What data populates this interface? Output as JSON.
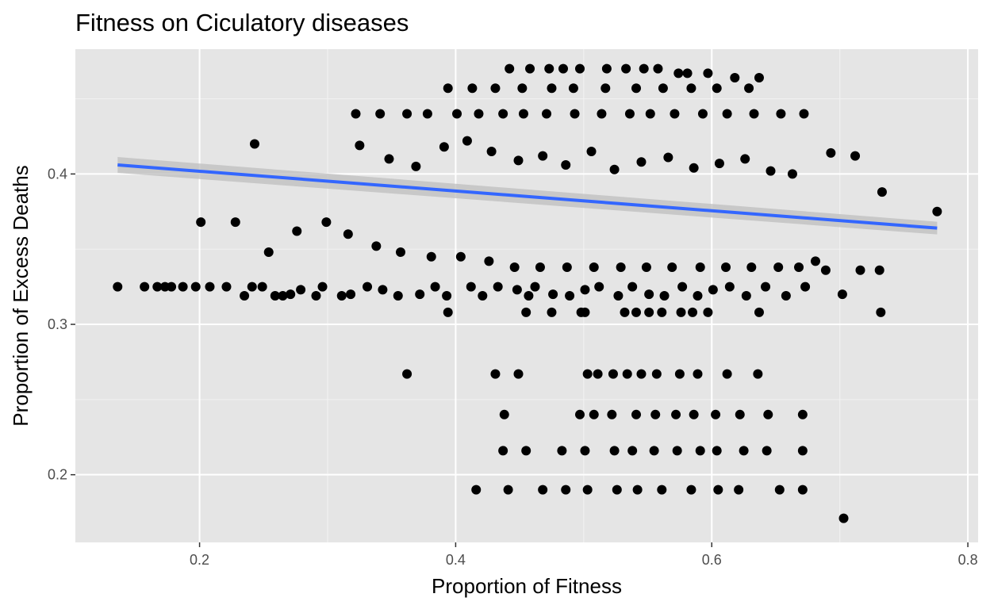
{
  "chart_data": {
    "type": "scatter",
    "title": "Fitness on Ciculatory diseases",
    "xlabel": "Proportion of Fitness",
    "ylabel": "Proportion of Excess Deaths",
    "xlim": [
      0.103,
      0.808
    ],
    "ylim": [
      0.155,
      0.483
    ],
    "x_ticks": [
      0.2,
      0.4,
      0.6,
      0.8
    ],
    "x_tick_labels": [
      "0.2",
      "0.4",
      "0.6",
      "0.8"
    ],
    "y_ticks": [
      0.2,
      0.3,
      0.4
    ],
    "y_tick_labels": [
      "0.2",
      "0.3",
      "0.4"
    ],
    "grid": true,
    "panel_background": "#e5e5e5",
    "point_color": "#000000",
    "trend_line": {
      "method": "linear",
      "color": "#3366ff",
      "band_color": "#bdbdbd",
      "x": [
        0.136,
        0.776
      ],
      "y": [
        0.406,
        0.364
      ]
    },
    "series": [
      {
        "x": [
          0.136,
          0.157,
          0.167,
          0.173,
          0.178,
          0.187,
          0.197,
          0.208,
          0.221,
          0.235,
          0.241,
          0.243,
          0.249,
          0.259,
          0.265,
          0.271,
          0.279,
          0.291,
          0.296,
          0.311,
          0.318,
          0.331,
          0.343,
          0.355,
          0.372,
          0.384,
          0.393,
          0.412,
          0.421,
          0.433,
          0.448,
          0.457,
          0.462,
          0.476,
          0.489,
          0.501,
          0.512,
          0.527,
          0.538,
          0.551,
          0.563,
          0.577,
          0.589,
          0.601,
          0.614,
          0.627,
          0.642,
          0.658,
          0.673,
          0.689,
          0.702,
          0.716,
          0.731,
          0.776,
          0.322,
          0.341,
          0.362,
          0.378,
          0.401,
          0.418,
          0.437,
          0.453,
          0.471,
          0.493,
          0.514,
          0.536,
          0.552,
          0.571,
          0.593,
          0.612,
          0.633,
          0.654,
          0.672,
          0.693,
          0.712,
          0.733,
          0.201,
          0.228,
          0.254,
          0.276,
          0.299,
          0.316,
          0.338,
          0.357,
          0.381,
          0.404,
          0.426,
          0.446,
          0.466,
          0.487,
          0.508,
          0.529,
          0.549,
          0.569,
          0.591,
          0.611,
          0.631,
          0.652,
          0.668,
          0.681,
          0.325,
          0.348,
          0.369,
          0.391,
          0.409,
          0.428,
          0.449,
          0.468,
          0.486,
          0.506,
          0.524,
          0.545,
          0.566,
          0.586,
          0.606,
          0.626,
          0.646,
          0.663,
          0.442,
          0.458,
          0.473,
          0.484,
          0.497,
          0.518,
          0.533,
          0.547,
          0.558,
          0.574,
          0.581,
          0.597,
          0.618,
          0.637,
          0.394,
          0.413,
          0.431,
          0.452,
          0.475,
          0.492,
          0.517,
          0.541,
          0.562,
          0.584,
          0.604,
          0.629,
          0.394,
          0.455,
          0.475,
          0.498,
          0.501,
          0.532,
          0.541,
          0.551,
          0.561,
          0.576,
          0.585,
          0.597,
          0.637,
          0.732,
          0.362,
          0.431,
          0.449,
          0.503,
          0.511,
          0.523,
          0.534,
          0.545,
          0.557,
          0.575,
          0.589,
          0.612,
          0.636,
          0.438,
          0.497,
          0.508,
          0.522,
          0.541,
          0.556,
          0.572,
          0.586,
          0.603,
          0.622,
          0.644,
          0.671,
          0.437,
          0.455,
          0.483,
          0.501,
          0.524,
          0.538,
          0.555,
          0.573,
          0.591,
          0.604,
          0.625,
          0.643,
          0.671,
          0.416,
          0.441,
          0.468,
          0.486,
          0.503,
          0.526,
          0.542,
          0.561,
          0.584,
          0.605,
          0.621,
          0.653,
          0.671,
          0.703
        ],
        "y": [
          0.325,
          0.325,
          0.325,
          0.325,
          0.325,
          0.325,
          0.325,
          0.325,
          0.325,
          0.319,
          0.325,
          0.42,
          0.325,
          0.319,
          0.319,
          0.32,
          0.323,
          0.319,
          0.325,
          0.319,
          0.32,
          0.325,
          0.323,
          0.319,
          0.32,
          0.325,
          0.319,
          0.325,
          0.319,
          0.325,
          0.323,
          0.319,
          0.325,
          0.32,
          0.319,
          0.323,
          0.325,
          0.319,
          0.325,
          0.32,
          0.319,
          0.325,
          0.319,
          0.323,
          0.325,
          0.319,
          0.325,
          0.319,
          0.325,
          0.336,
          0.32,
          0.336,
          0.336,
          0.375,
          0.44,
          0.44,
          0.44,
          0.44,
          0.44,
          0.44,
          0.44,
          0.44,
          0.44,
          0.44,
          0.44,
          0.44,
          0.44,
          0.44,
          0.44,
          0.44,
          0.44,
          0.44,
          0.44,
          0.414,
          0.412,
          0.388,
          0.368,
          0.368,
          0.348,
          0.362,
          0.368,
          0.36,
          0.352,
          0.348,
          0.345,
          0.345,
          0.342,
          0.338,
          0.338,
          0.338,
          0.338,
          0.338,
          0.338,
          0.338,
          0.338,
          0.338,
          0.338,
          0.338,
          0.338,
          0.342,
          0.419,
          0.41,
          0.405,
          0.418,
          0.422,
          0.415,
          0.409,
          0.412,
          0.406,
          0.415,
          0.403,
          0.408,
          0.411,
          0.404,
          0.407,
          0.41,
          0.402,
          0.4,
          0.47,
          0.47,
          0.47,
          0.47,
          0.47,
          0.47,
          0.47,
          0.47,
          0.47,
          0.467,
          0.467,
          0.467,
          0.464,
          0.464,
          0.457,
          0.457,
          0.457,
          0.457,
          0.457,
          0.457,
          0.457,
          0.457,
          0.457,
          0.457,
          0.457,
          0.457,
          0.308,
          0.308,
          0.308,
          0.308,
          0.308,
          0.308,
          0.308,
          0.308,
          0.308,
          0.308,
          0.308,
          0.308,
          0.308,
          0.308,
          0.267,
          0.267,
          0.267,
          0.267,
          0.267,
          0.267,
          0.267,
          0.267,
          0.267,
          0.267,
          0.267,
          0.267,
          0.267,
          0.24,
          0.24,
          0.24,
          0.24,
          0.24,
          0.24,
          0.24,
          0.24,
          0.24,
          0.24,
          0.24,
          0.24,
          0.216,
          0.216,
          0.216,
          0.216,
          0.216,
          0.216,
          0.216,
          0.216,
          0.216,
          0.216,
          0.216,
          0.216,
          0.216,
          0.19,
          0.19,
          0.19,
          0.19,
          0.19,
          0.19,
          0.19,
          0.19,
          0.19,
          0.19,
          0.19,
          0.19,
          0.19,
          0.171
        ]
      }
    ]
  }
}
